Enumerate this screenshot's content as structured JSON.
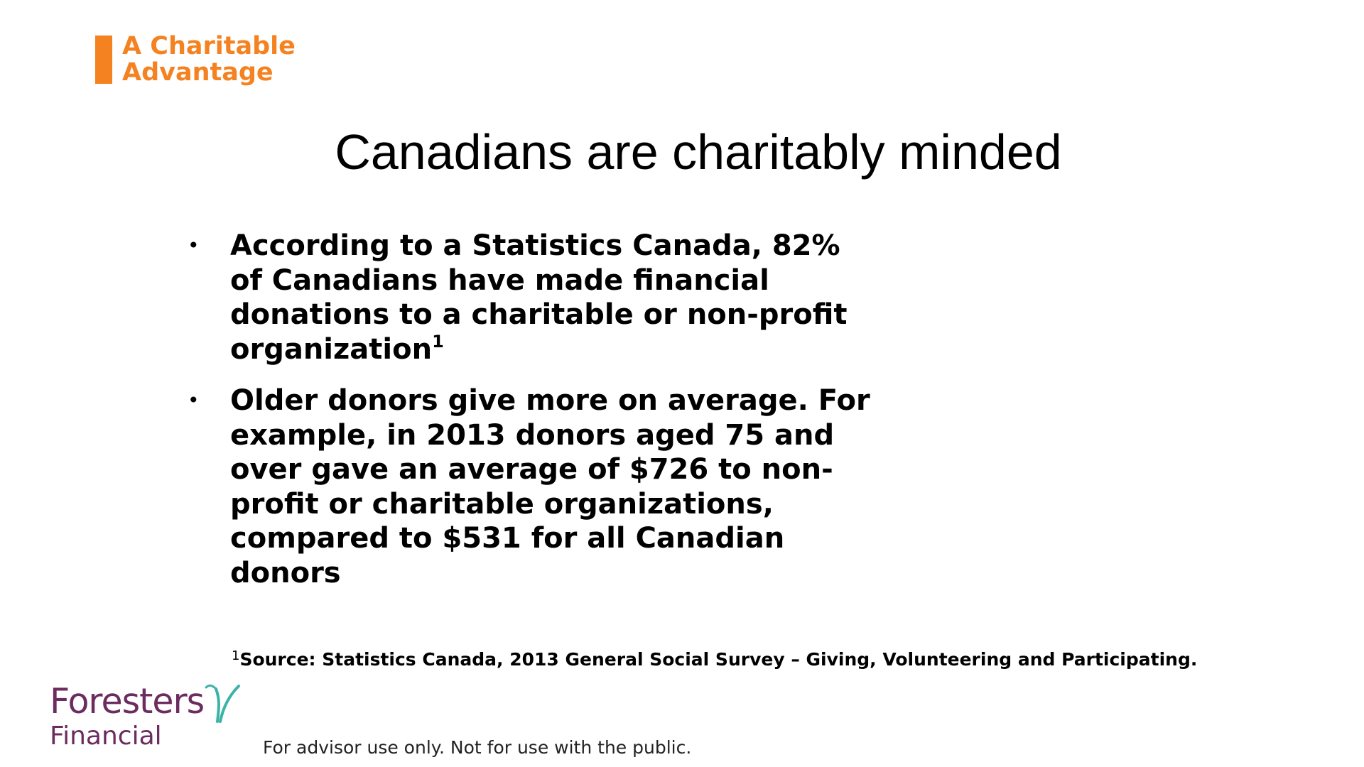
{
  "colors": {
    "accent_orange": "#F58220",
    "logo_purple": "#6B2C5F",
    "logo_teal": "#3BB3A8",
    "text": "#000000",
    "disclaimer": "#222222"
  },
  "header": {
    "line1": "A Charitable",
    "line2": "Advantage"
  },
  "title": "Canadians are charitably minded",
  "bullets": [
    {
      "marker": "•",
      "text": "According to a Statistics Canada, 82%\nof Canadians have made financial\ndonations to a charitable or non-profit\norganization",
      "superscript": "1"
    },
    {
      "marker": "•",
      "text": "Older donors give more on average. For\nexample, in 2013 donors aged 75 and\nover gave an average of $726 to non-\nprofit or charitable organizations,\ncompared to $531 for all Canadian\ndonors",
      "superscript": ""
    }
  ],
  "footnote": {
    "marker": "1",
    "text": "Source: Statistics Canada, 2013 General Social Survey – Giving, Volunteering and Participating."
  },
  "logo": {
    "word1": "Foresters",
    "word2": "Financial",
    "mark_icon": "sprout-icon"
  },
  "disclaimer": "For advisor use only. Not for use with the public."
}
